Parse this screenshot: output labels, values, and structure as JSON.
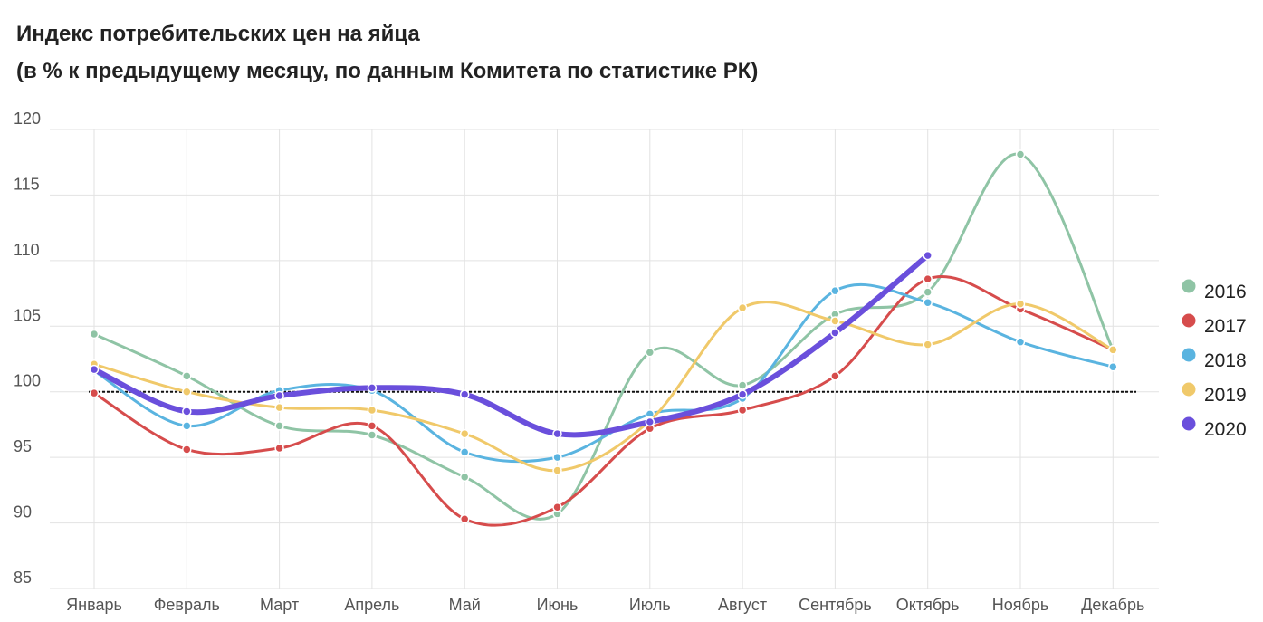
{
  "chart_data": {
    "type": "line",
    "title": "Индекс потребительских цен на яйца",
    "subtitle": "(в % к предыдущему месяцу, по данным Комитета по статистике РК)",
    "categories": [
      "Январь",
      "Февраль",
      "Март",
      "Апрель",
      "Май",
      "Июнь",
      "Июль",
      "Август",
      "Сентябрь",
      "Октябрь",
      "Ноябрь",
      "Декабрь"
    ],
    "series": [
      {
        "name": "2016",
        "color": "#8fc4a5",
        "values": [
          104.4,
          101.2,
          97.4,
          96.7,
          93.5,
          90.7,
          103.0,
          100.5,
          105.9,
          107.6,
          118.1,
          103.2
        ]
      },
      {
        "name": "2017",
        "color": "#d64c4c",
        "values": [
          99.9,
          95.6,
          95.7,
          97.4,
          90.3,
          91.2,
          97.2,
          98.6,
          101.2,
          108.6,
          106.3,
          103.2
        ]
      },
      {
        "name": "2018",
        "color": "#5ab4e0",
        "values": [
          101.6,
          97.4,
          100.1,
          100.1,
          95.4,
          95.0,
          98.3,
          99.5,
          107.7,
          106.8,
          103.8,
          101.9
        ]
      },
      {
        "name": "2019",
        "color": "#f0c96a",
        "values": [
          102.1,
          100.0,
          98.8,
          98.6,
          96.8,
          94.0,
          97.8,
          106.4,
          105.4,
          103.6,
          106.7,
          103.2
        ]
      },
      {
        "name": "2020",
        "color": "#6a4fdc",
        "values": [
          101.7,
          98.5,
          99.7,
          100.3,
          99.8,
          96.8,
          97.7,
          99.8,
          104.5,
          110.4,
          null,
          null
        ]
      }
    ],
    "ylim": [
      85,
      120
    ],
    "yticks": [
      85,
      90,
      95,
      100,
      105,
      110,
      115,
      120
    ],
    "reference_line": 100,
    "grid": true,
    "legend": "right"
  }
}
